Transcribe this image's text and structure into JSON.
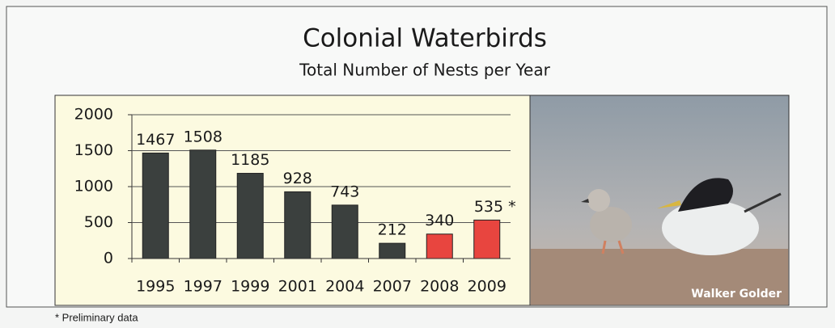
{
  "chart_data": {
    "type": "bar",
    "title": "Colonial Waterbirds",
    "subtitle": "Total Number of Nests per Year",
    "categories": [
      "1995",
      "1997",
      "1999",
      "2001",
      "2004",
      "2007",
      "2008",
      "2009"
    ],
    "values": [
      1467,
      1508,
      1185,
      928,
      743,
      212,
      340,
      535
    ],
    "value_labels": [
      "1467",
      "1508",
      "1185",
      "928",
      "743",
      "212",
      "340",
      "535 *"
    ],
    "colors": [
      "#3b403e",
      "#3b403e",
      "#3b403e",
      "#3b403e",
      "#3b403e",
      "#3b403e",
      "#e8453f",
      "#e8453f"
    ],
    "ylim": [
      0,
      2000
    ],
    "yticks": [
      0,
      500,
      1000,
      1500,
      2000
    ],
    "grid": true,
    "photo_credit": "Walker Golder",
    "footnote": "* Preliminary data"
  }
}
